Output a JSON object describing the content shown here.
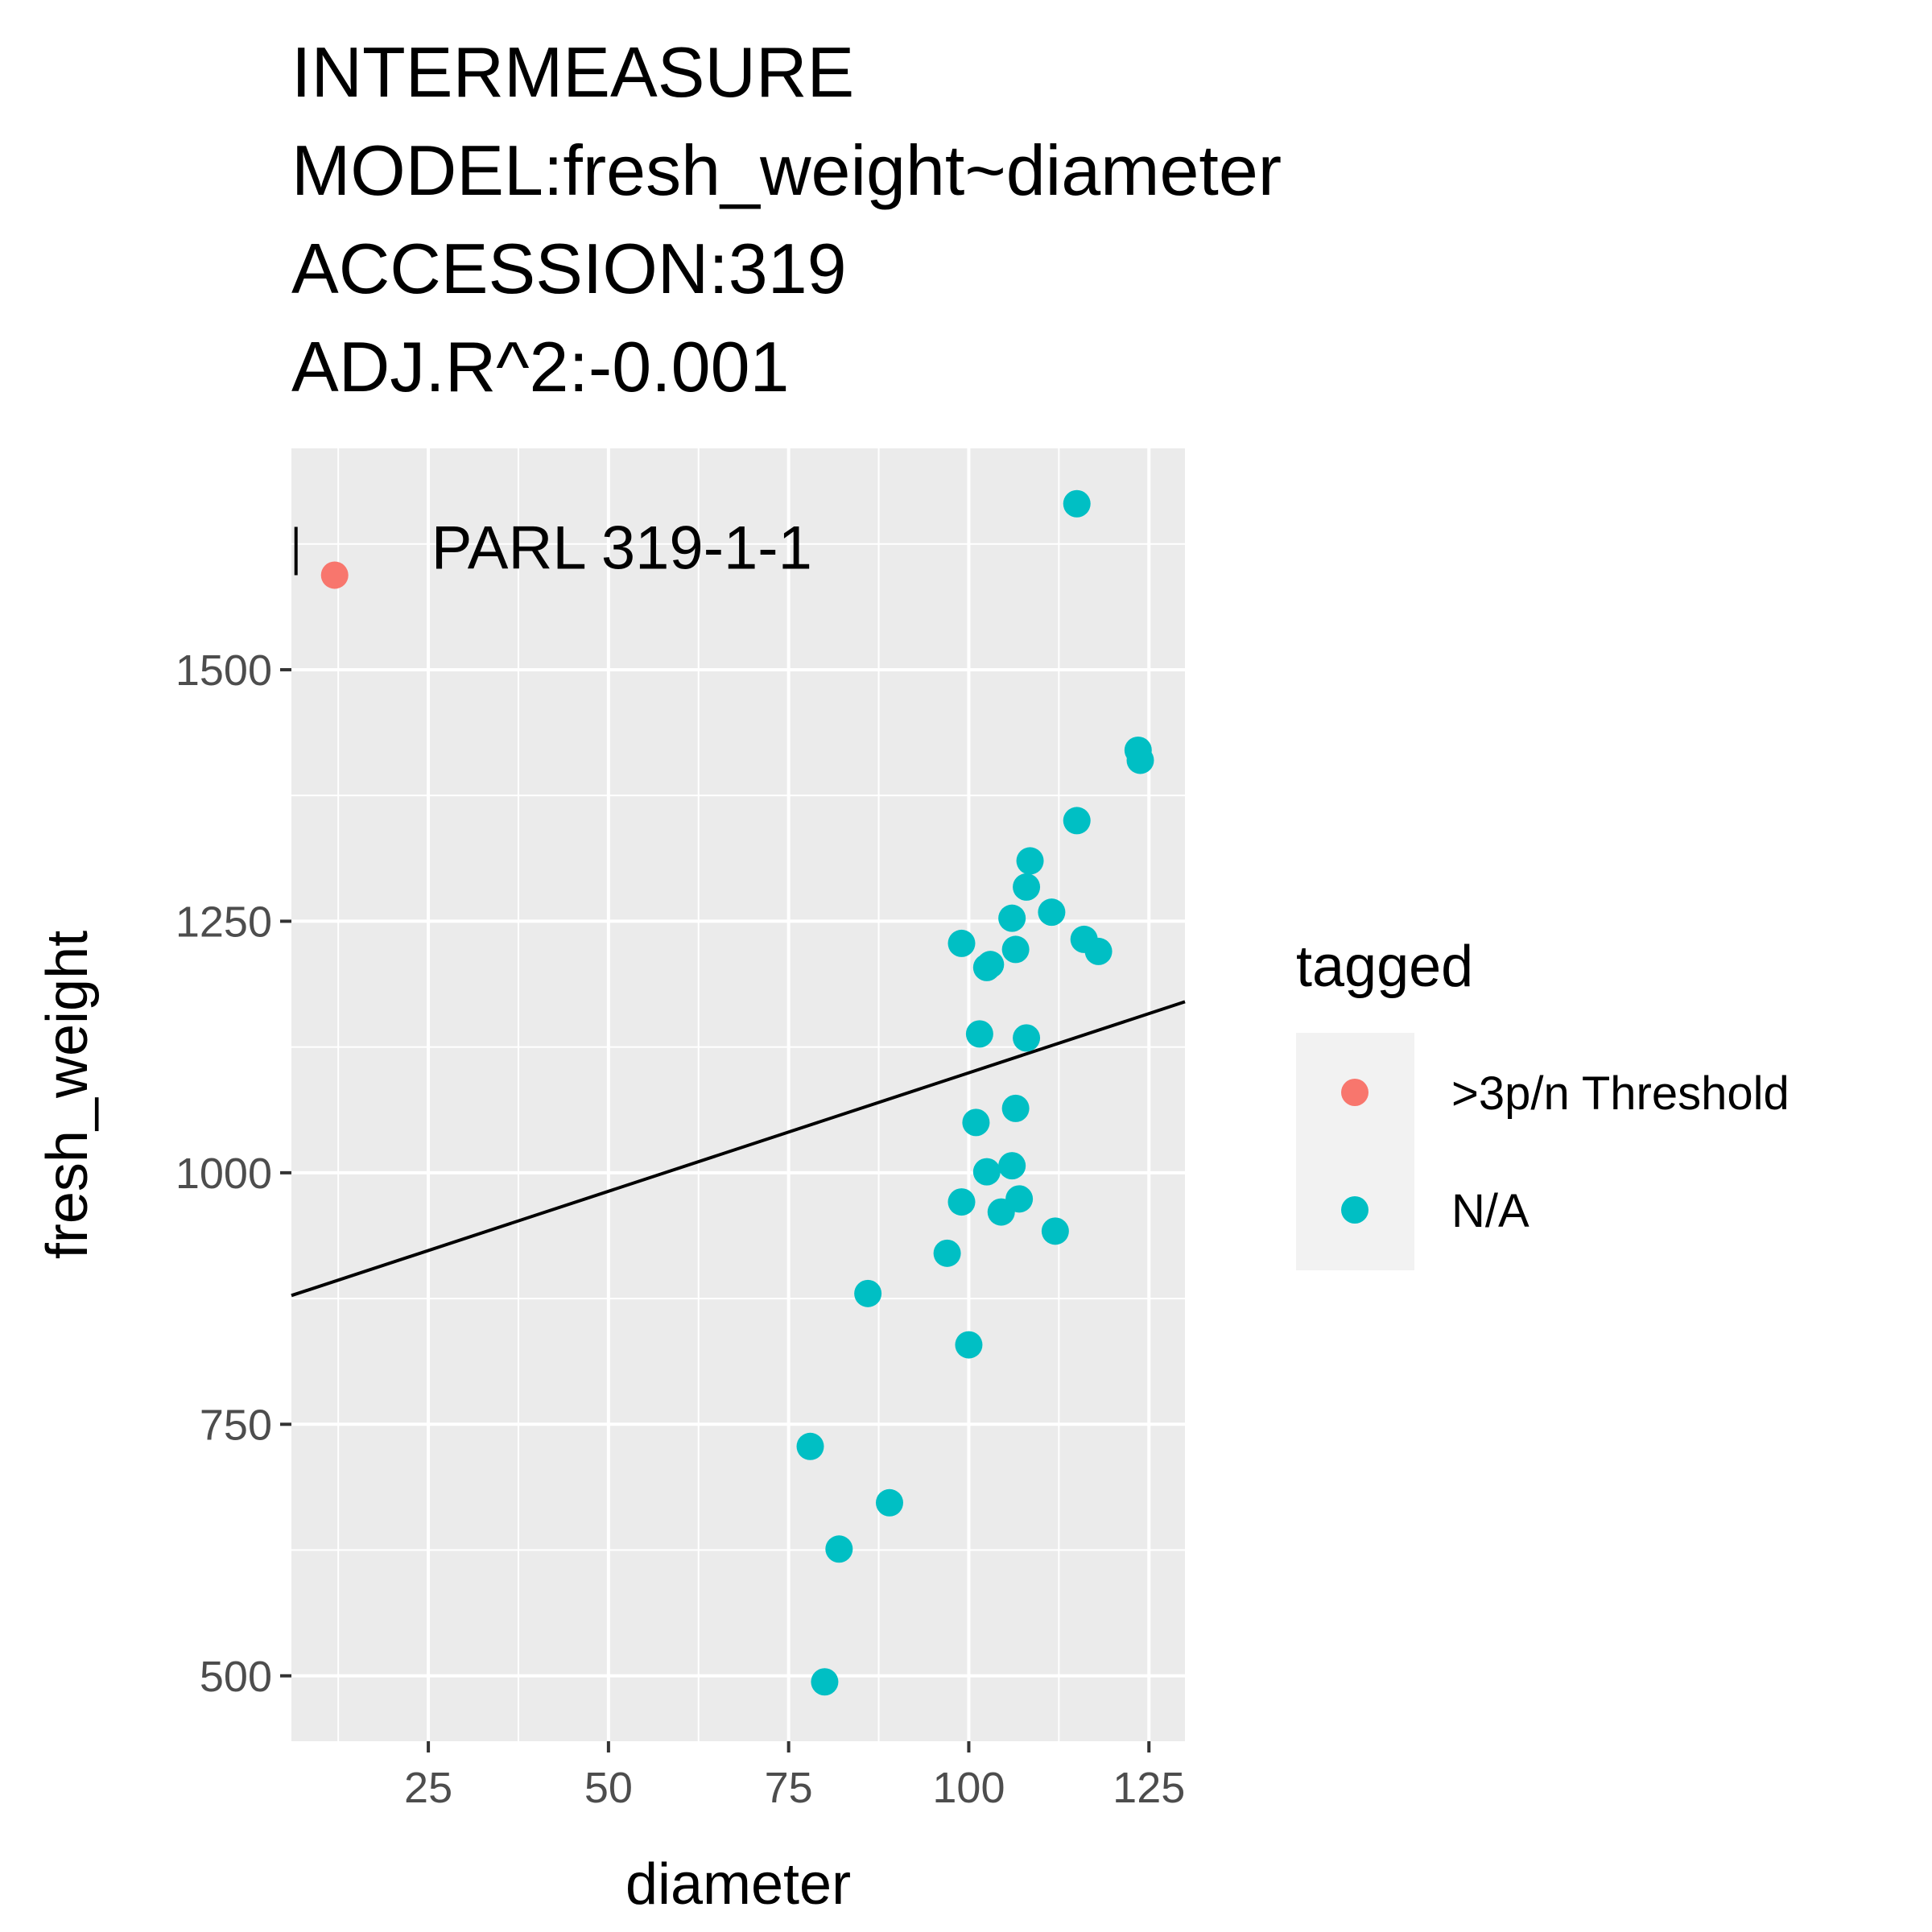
{
  "chart_data": {
    "type": "scatter",
    "title_lines": [
      "INTERMEASURE",
      "MODEL:fresh_weight~diameter",
      "ACCESSION:319",
      "ADJ.R^2:-0.001"
    ],
    "xlabel": "diameter",
    "ylabel": "fresh_weight",
    "xlim": [
      6,
      130
    ],
    "ylim": [
      435,
      1720
    ],
    "x_ticks": [
      25,
      50,
      75,
      100,
      125
    ],
    "x_tick_labels": [
      "25",
      "50",
      "75",
      "100",
      "125"
    ],
    "y_ticks": [
      500,
      750,
      1000,
      1250,
      1500
    ],
    "y_tick_labels": [
      "500",
      "750",
      "1000",
      "1250",
      "1500"
    ],
    "grid": true,
    "legend": {
      "title": "tagged",
      "placement": "right",
      "entries": [
        {
          "label": ">3p/n Threshold",
          "color": "#F8766D"
        },
        {
          "label": "N/A",
          "color": "#00BFC4"
        }
      ]
    },
    "series": [
      {
        "name": ">3p/n Threshold",
        "color": "#F8766D",
        "points": [
          [
            12,
            1594
          ]
        ]
      },
      {
        "name": "N/A",
        "color": "#00BFC4",
        "points": [
          [
            115,
            1665
          ],
          [
            123.5,
            1420
          ],
          [
            123.8,
            1410
          ],
          [
            115,
            1350
          ],
          [
            108.5,
            1310
          ],
          [
            108,
            1284
          ],
          [
            111.5,
            1259
          ],
          [
            106,
            1253
          ],
          [
            116,
            1232
          ],
          [
            99,
            1228
          ],
          [
            106.5,
            1222
          ],
          [
            118,
            1220
          ],
          [
            103,
            1207
          ],
          [
            102.5,
            1204
          ],
          [
            101.5,
            1138
          ],
          [
            108,
            1134
          ],
          [
            106.5,
            1064
          ],
          [
            101,
            1050
          ],
          [
            102.5,
            1001
          ],
          [
            106,
            1007
          ],
          [
            99,
            971
          ],
          [
            107,
            974
          ],
          [
            104.5,
            961
          ],
          [
            112,
            942
          ],
          [
            97,
            920
          ],
          [
            86,
            880
          ],
          [
            100,
            829
          ],
          [
            78,
            728
          ],
          [
            89,
            672
          ],
          [
            82,
            626
          ],
          [
            80,
            494
          ]
        ]
      }
    ],
    "fit_line": {
      "x": [
        6,
        130
      ],
      "y": [
        878,
        1170
      ],
      "color": "#000000"
    },
    "annotations": [
      {
        "text": "PARL 319-1-1",
        "x": 12,
        "y": 1594
      }
    ]
  }
}
